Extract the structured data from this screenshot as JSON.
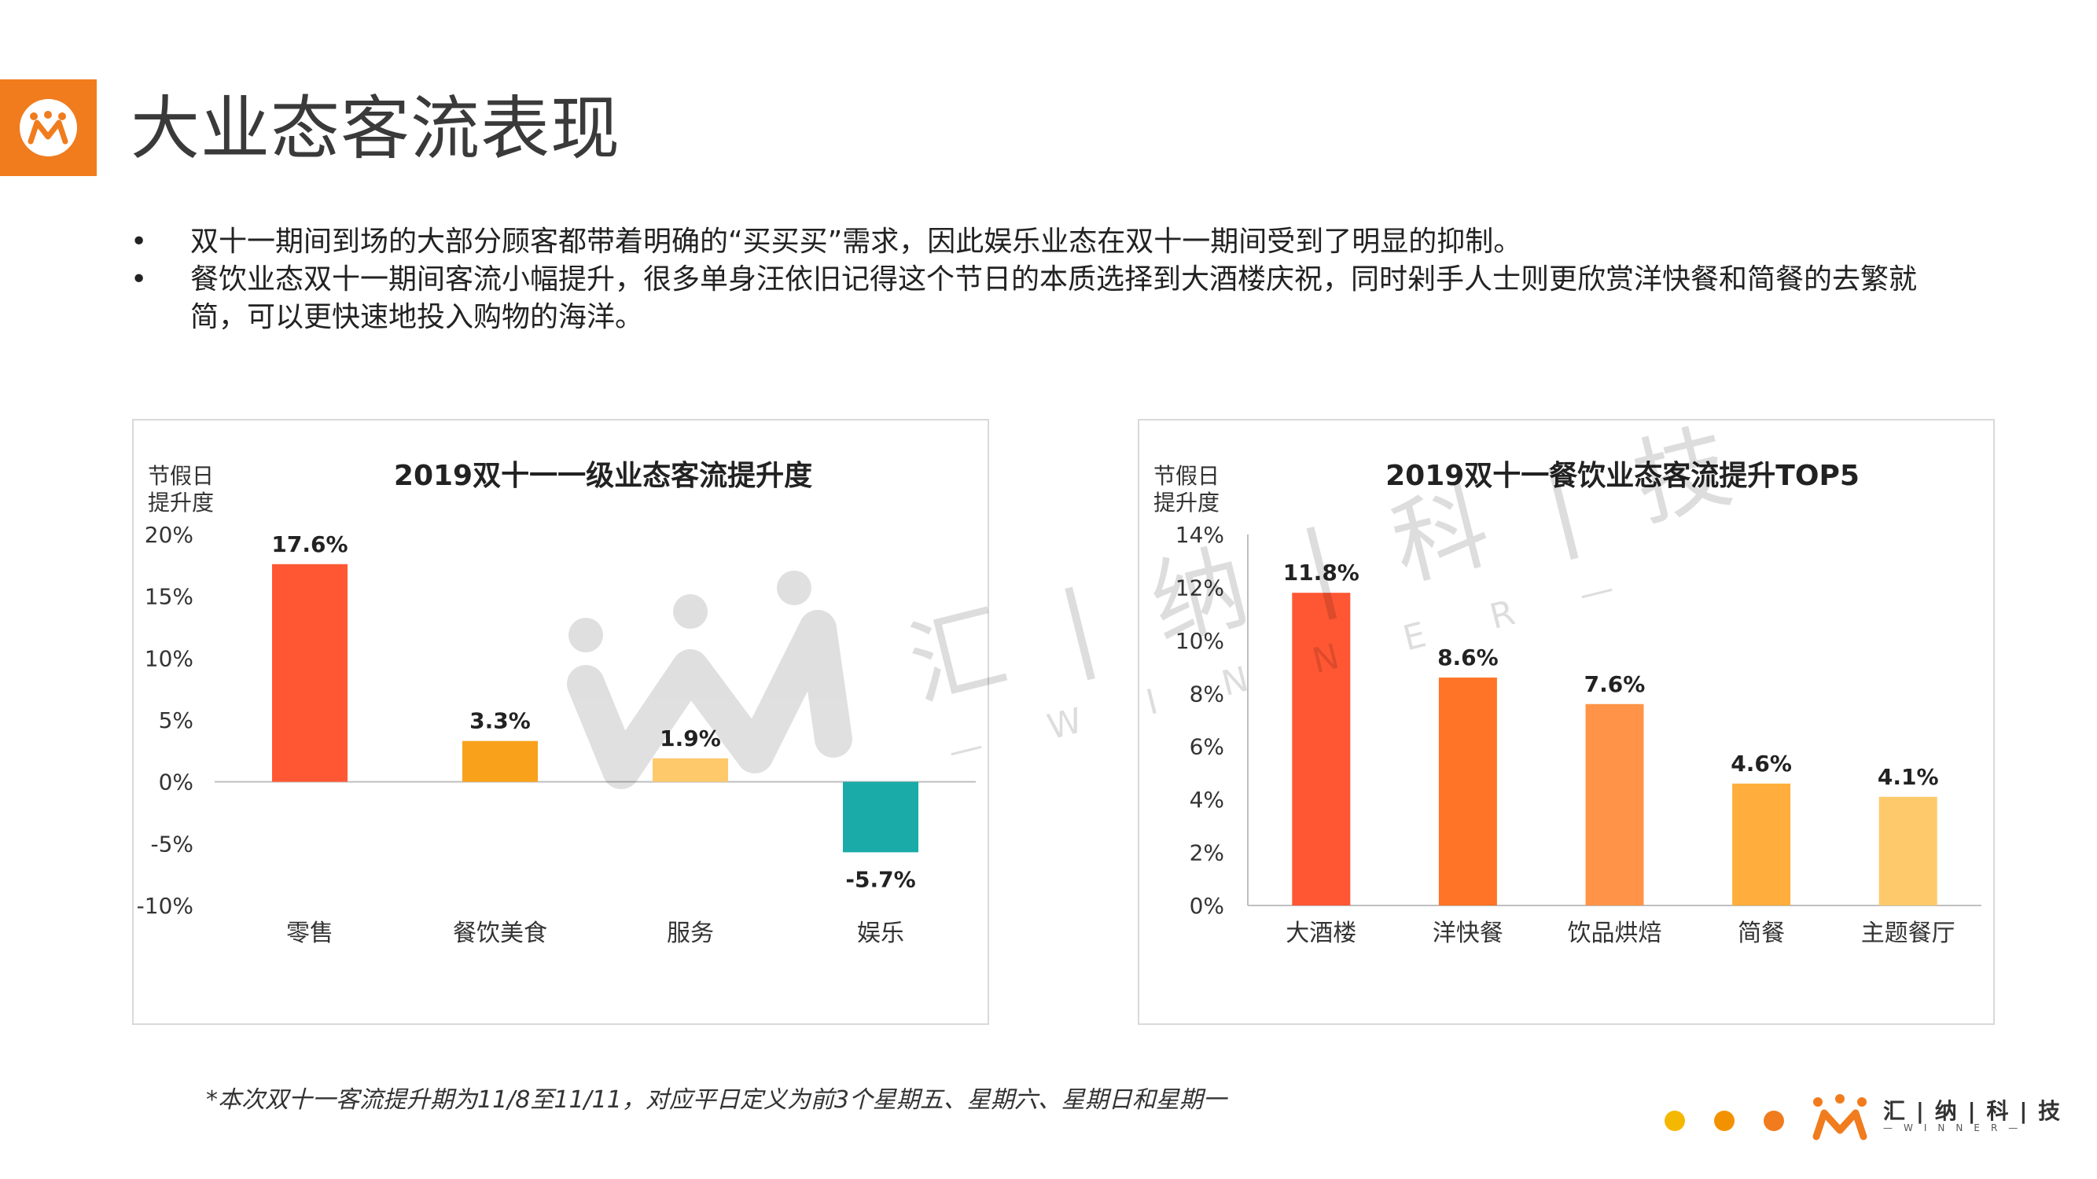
{
  "page": {
    "title": "大业态客流表现",
    "bullets": [
      "双十一期间到场的大部分顾客都带着明确的“买买买”需求，因此娱乐业态在双十一期间受到了明显的抑制。",
      "餐饮业态双十一期间客流小幅提升，很多单身汪依旧记得这个节日的本质选择到大酒楼庆祝，同时剁手人士则更欣赏洋快餐和简餐的去繁就简，可以更快速地投入购物的海洋。"
    ],
    "footnote": "*本次双十一客流提升期为11/8至11/11，对应平日定义为前3个星期五、星期六、星期日和星期一"
  },
  "brand": {
    "name": "汇 | 纳 | 科 | 技",
    "sub": "—WINNER—",
    "colors": {
      "orange": "#f07c1e",
      "dot1": "#f5b800",
      "dot2": "#f39200",
      "dot3": "#f07c1e"
    }
  },
  "watermark": {
    "cn": "汇 | 纳 | 科 | 技",
    "en": "— W I N N E R —"
  },
  "chart_data": [
    {
      "type": "bar",
      "title": "2019双十一一级业态客流提升度",
      "ylabel_lines": [
        "节假日",
        "提升度"
      ],
      "categories": [
        "零售",
        "餐饮美食",
        "服务",
        "娱乐"
      ],
      "values": [
        17.6,
        3.3,
        1.9,
        -5.7
      ],
      "data_labels": [
        "17.6%",
        "3.3%",
        "1.9%",
        "-5.7%"
      ],
      "colors": [
        "#ff5733",
        "#f9a11b",
        "#fdc96b",
        "#1aaba8"
      ],
      "ylim": [
        -10,
        20
      ],
      "yticks": [
        -10,
        -5,
        0,
        5,
        10,
        15,
        20
      ],
      "ytick_labels": [
        "-10%",
        "-5%",
        "0%",
        "5%",
        "10%",
        "15%",
        "20%"
      ]
    },
    {
      "type": "bar",
      "title": "2019双十一餐饮业态客流提升TOP5",
      "ylabel_lines": [
        "节假日",
        "提升度"
      ],
      "categories": [
        "大酒楼",
        "洋快餐",
        "饮品烘焙",
        "简餐",
        "主题餐厅"
      ],
      "values": [
        11.8,
        8.6,
        7.6,
        4.6,
        4.1
      ],
      "data_labels": [
        "11.8%",
        "8.6%",
        "7.6%",
        "4.6%",
        "4.1%"
      ],
      "colors": [
        "#ff5733",
        "#ff7426",
        "#ff9448",
        "#ffae3d",
        "#fdc96b"
      ],
      "ylim": [
        0,
        14
      ],
      "yticks": [
        0,
        2,
        4,
        6,
        8,
        10,
        12,
        14
      ],
      "ytick_labels": [
        "0%",
        "2%",
        "4%",
        "6%",
        "8%",
        "10%",
        "12%",
        "14%"
      ]
    }
  ]
}
